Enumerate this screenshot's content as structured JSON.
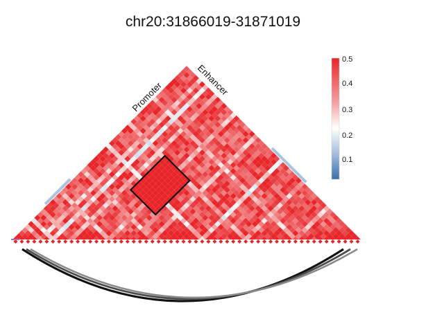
{
  "title": "chr20:31866019-31871019",
  "chart_data": {
    "type": "heatmap",
    "title": "chr20:31866019-31871019",
    "shape": "triangular pairwise matrix with arc track below",
    "colorbar": {
      "ticks": [
        "0.5",
        "0.4",
        "0.3",
        "0.2",
        "0.1"
      ],
      "tick_values": [
        0.5,
        0.4,
        0.3,
        0.2,
        0.1
      ],
      "range": [
        0.05,
        0.5
      ],
      "colors": {
        "low": "#3a6fae",
        "mid": "#ffffff",
        "high": "#e8262a"
      }
    },
    "regions": [
      {
        "label": "Promoter",
        "color": "#a8c4de"
      },
      {
        "label": "Enhancer",
        "color": "#a8c4de"
      }
    ],
    "highlight_box": {
      "rows": "Promoter",
      "cols": "Enhancer",
      "value": 0.5,
      "outline": "#000000"
    },
    "arcs": [
      {
        "from": "Promoter",
        "to": "Enhancer",
        "count": 3
      }
    ]
  }
}
